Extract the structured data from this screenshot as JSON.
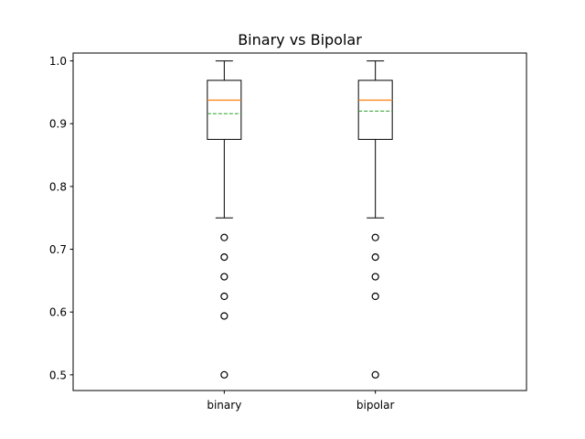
{
  "chart_data": {
    "type": "box",
    "title": "Binary vs Bipolar",
    "xlabel": "",
    "ylabel": "",
    "ylim": [
      0.475,
      1.0125
    ],
    "yticks": [
      0.5,
      0.6,
      0.7,
      0.8,
      0.9,
      1.0
    ],
    "ytick_labels": [
      "0.5",
      "0.6",
      "0.7",
      "0.8",
      "0.9",
      "1.0"
    ],
    "grid": false,
    "colors": {
      "box": "#000000",
      "median": "#ff7f0e",
      "mean": "#2ca02c",
      "flier": "#000000"
    },
    "series": [
      {
        "category": "binary",
        "whisker_low": 0.75,
        "q1": 0.875,
        "median": 0.9375,
        "mean": 0.916,
        "q3": 0.969,
        "whisker_high": 1.0,
        "fliers": [
          0.71875,
          0.6875,
          0.65625,
          0.625,
          0.59375,
          0.5
        ]
      },
      {
        "category": "bipolar",
        "whisker_low": 0.75,
        "q1": 0.875,
        "median": 0.9375,
        "mean": 0.92,
        "q3": 0.969,
        "whisker_high": 1.0,
        "fliers": [
          0.71875,
          0.6875,
          0.65625,
          0.625,
          0.5
        ]
      }
    ]
  }
}
